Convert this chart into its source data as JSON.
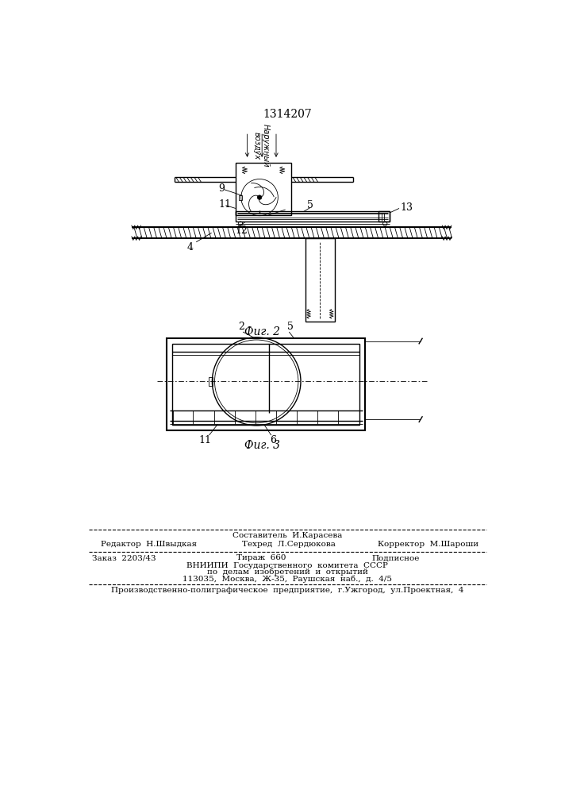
{
  "title": "1314207",
  "title_fontsize": 10,
  "bg_color": "#ffffff",
  "line_color": "#000000",
  "fig2_caption": "Фиг. 2",
  "fig3_caption": "Фиг. 3",
  "caption_fontsize": 10,
  "air_label": "Наружный\nвоздух",
  "label_9": "9",
  "label_11": "11",
  "label_12": "12",
  "label_5a": "5",
  "label_13": "13",
  "label_4": "4",
  "label_2": "2",
  "label_5b": "5",
  "label_11b": "11",
  "label_6": "6",
  "footer_line1": "Составитель  И.Карасева",
  "footer_line2_left": "Редактор  Н.Швыдкая",
  "footer_line2_mid": "Техред  Л.Сердюкова",
  "footer_line2_right": "Корректор  М.Шароши",
  "footer_line3_left": "Заказ  2203/43",
  "footer_line3_mid": "Тираж  660",
  "footer_line3_right": "Подписное",
  "footer_line4": "ВНИИПИ  Государственного  комитета  СССР",
  "footer_line5": "по  делам  изобретений  и  открытий",
  "footer_line6": "113035,  Москва,  Ж-35,  Раушская  наб.,  д.  4/5",
  "footer_line7": "Производственно-полиграфическое  предприятие,  г.Ужгород,  ул.Проектная,  4",
  "small_fontsize": 7.5,
  "label_fontsize": 9
}
